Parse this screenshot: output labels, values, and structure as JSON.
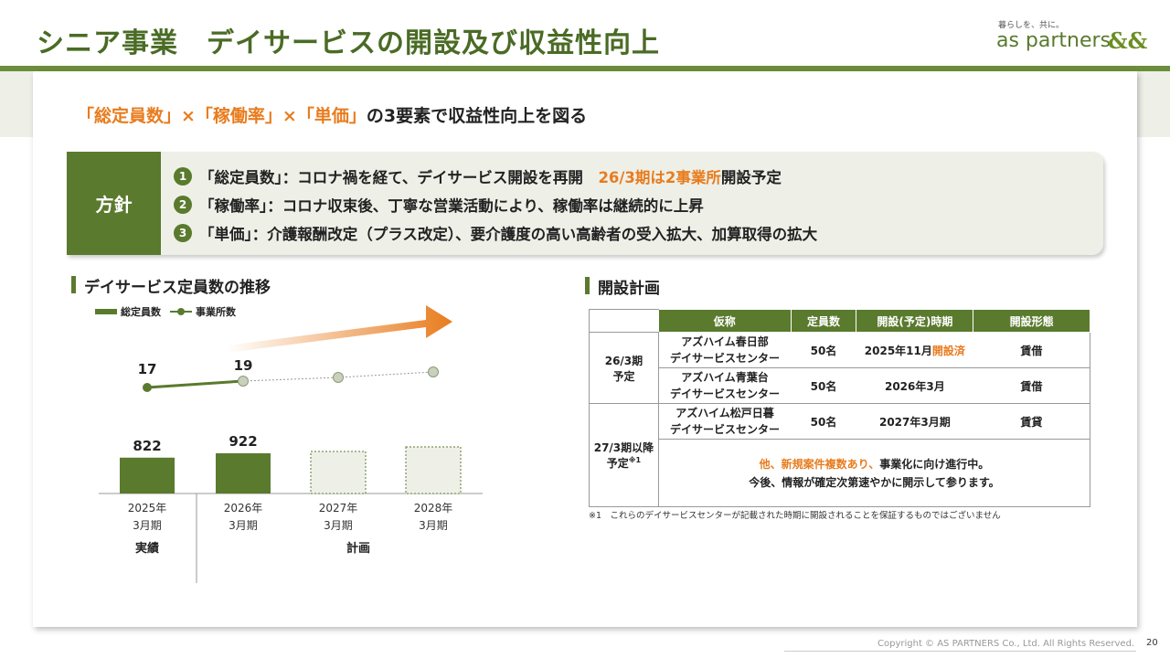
{
  "header": {
    "title": "シニア事業　デイサービスの開設及び収益性向上",
    "logo_tagline": "暮らしを、共に。",
    "logo_text": "as partners",
    "logo_mark": "&&"
  },
  "subtitle": {
    "part1": "「総定員数」×「稼働率」×「単価」",
    "part2": "の3要素で収益性向上を図る"
  },
  "policy": {
    "label": "方針",
    "items": [
      {
        "num": "1",
        "text": "「総定員数」：コロナ禍を経て、デイサービス開設を再開　",
        "highlight": "26/3期は2事業所",
        "after": "開設予定"
      },
      {
        "num": "2",
        "text": "「稼働率」：コロナ収束後、丁寧な営業活動により、稼働率は継続的に上昇",
        "highlight": "",
        "after": ""
      },
      {
        "num": "3",
        "text": "「単価」：介護報酬改定（プラス改定）、要介護度の高い高齢者の受入拡大、加算取得の拡大",
        "highlight": "",
        "after": ""
      }
    ]
  },
  "left_section": {
    "heading": "デイサービス定員数の推移",
    "legend": {
      "bar": "総定員数",
      "line": "事業所数"
    },
    "actual_label": "実績",
    "plan_label": "計画"
  },
  "chart_data": {
    "type": "bar",
    "categories": [
      "2025年\n3月期",
      "2026年\n3月期",
      "2027年\n3月期",
      "2028年\n3月期"
    ],
    "series": [
      {
        "name": "総定員数",
        "values": [
          822,
          922,
          null,
          null
        ]
      },
      {
        "name": "事業所数",
        "values": [
          17,
          19,
          null,
          null
        ]
      }
    ],
    "category_lines": [
      [
        "2025年",
        "3月期"
      ],
      [
        "2026年",
        "3月期"
      ],
      [
        "2027年",
        "3月期"
      ],
      [
        "2028年",
        "3月期"
      ]
    ],
    "planned_categories": [
      2,
      3
    ],
    "colors": {
      "bar": "#5a7a2e",
      "planned_fill": "#eef0e8",
      "line": "#5a7a2e",
      "planned_marker": "#c9d1bd",
      "arrow": "#e87c1e"
    },
    "title": "",
    "xlabel": "",
    "ylabel": ""
  },
  "right_section": {
    "heading": "開設計画",
    "columns": [
      "仮称",
      "定員数",
      "開設(予定)時期",
      "開設形態"
    ],
    "groups": [
      {
        "label1": "26/3期",
        "label2": "予定",
        "rows": [
          {
            "name1": "アズハイム春日部",
            "name2": "デイサービスセンター",
            "capacity": "50名",
            "period": "2025年11月",
            "period_status": "開設済",
            "form": "賃借"
          },
          {
            "name1": "アズハイム青葉台",
            "name2": "デイサービスセンター",
            "capacity": "50名",
            "period": "2026年3月",
            "period_status": "",
            "form": "賃借"
          }
        ]
      },
      {
        "label1": "27/3期以降",
        "label2": "予定",
        "label_sup": "※1",
        "rows": [
          {
            "name1": "アズハイム松戸日暮",
            "name2": "デイサービスセンター",
            "capacity": "50名",
            "period": "2027年3月期",
            "period_status": "",
            "form": "賃貸"
          }
        ],
        "message_highlight": "他、新規案件複数あり、",
        "message_rest": "事業化に向け進行中。",
        "message_line2": "今後、情報が確定次第速やかに開示して参ります。"
      }
    ],
    "footnote": "※1　これらのデイサービスセンターが記載された時期に開設されることを保証するものではございません"
  },
  "footer": {
    "copyright": "Copyright © AS PARTNERS Co., Ltd. All Rights Reserved.",
    "page": "20"
  }
}
